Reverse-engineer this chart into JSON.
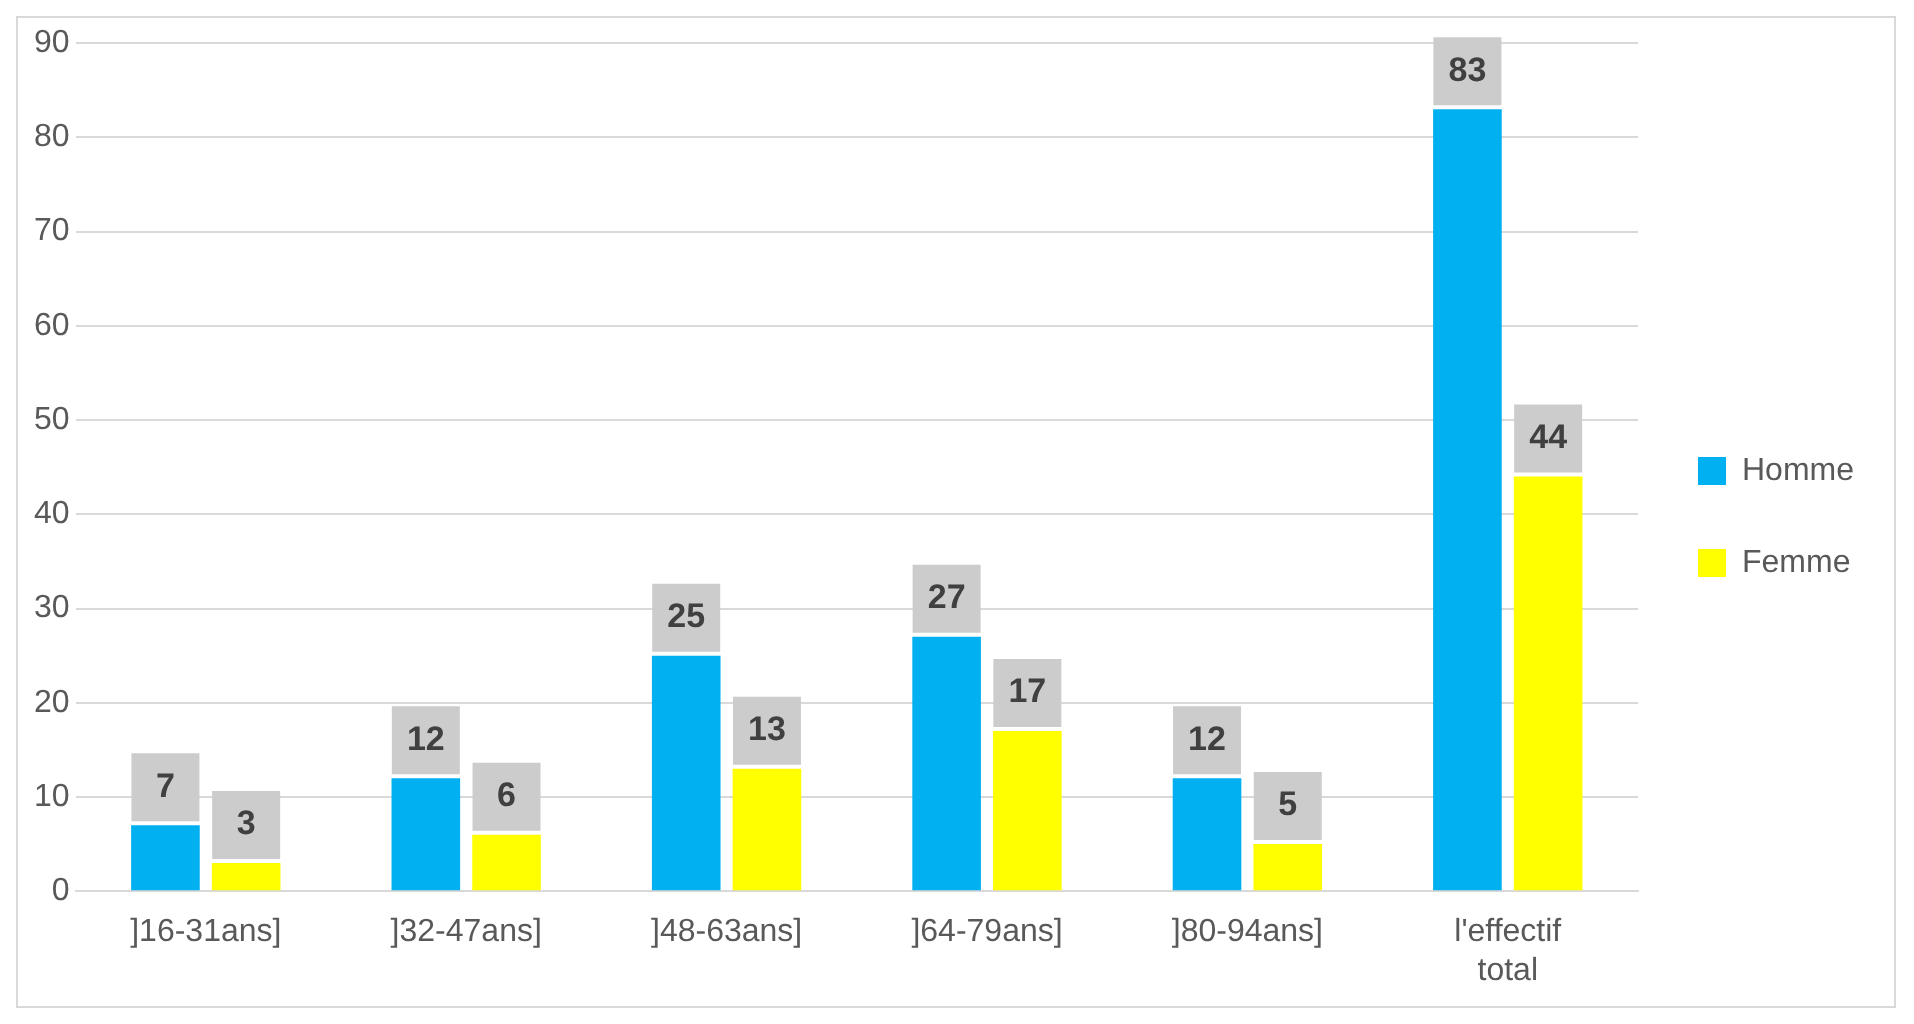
{
  "chart_data": {
    "type": "bar",
    "categories": [
      "]16-31ans]",
      "]32-47ans]",
      "]48-63ans]",
      "]64-79ans]",
      "]80-94ans]",
      "l'effectif total"
    ],
    "series": [
      {
        "name": "Homme",
        "color": "#00b0f0",
        "values": [
          7,
          12,
          25,
          27,
          12,
          83
        ]
      },
      {
        "name": "Femme",
        "color": "#ffff00",
        "values": [
          3,
          6,
          13,
          17,
          5,
          44
        ]
      }
    ],
    "ylim": [
      0,
      90
    ],
    "yticks": [
      0,
      10,
      20,
      30,
      40,
      50,
      60,
      70,
      80,
      90
    ],
    "grid": "y",
    "legend": "right",
    "data_labels": true
  }
}
